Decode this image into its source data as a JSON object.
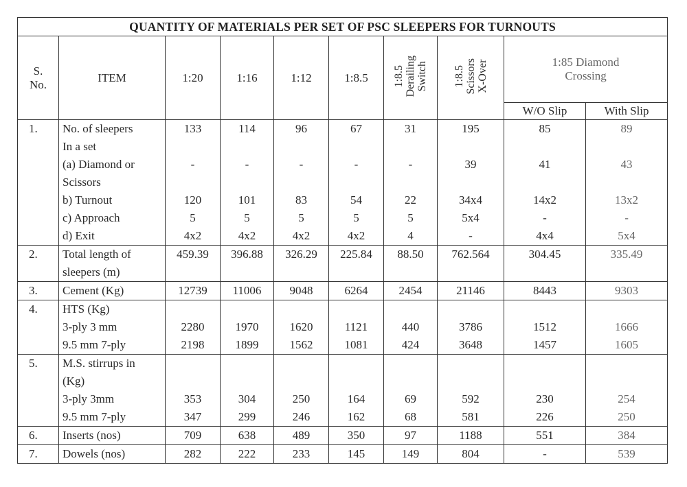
{
  "title": "QUANTITY OF MATERIALS PER SET OF PSC SLEEPERS FOR TURNOUTS",
  "headers": {
    "sno": "S. No.",
    "item": "ITEM",
    "cols": [
      "1:20",
      "1:16",
      "1:12",
      "1:8.5"
    ],
    "derailing": [
      "1:8.5",
      "Derailing",
      "Switch"
    ],
    "scissors": [
      "1:8.5",
      "Scissors",
      "X-Over"
    ],
    "diamond": "1:85 Diamond Crossing",
    "diamond_sub": [
      "W/O Slip",
      "With Slip"
    ]
  },
  "rows": [
    {
      "sno": "1.",
      "lines": [
        {
          "label": "No. of sleepers",
          "values": [
            "133",
            "114",
            "96",
            "67",
            "31",
            "195",
            "85",
            "89"
          ]
        },
        {
          "label": "In a set",
          "values": [
            "",
            "",
            "",
            "",
            "",
            "",
            "",
            ""
          ]
        },
        {
          "label": "(a) Diamond or",
          "values": [
            "-",
            "-",
            "-",
            "-",
            "-",
            "39",
            "41",
            "43"
          ]
        },
        {
          "label": "Scissors",
          "values": [
            "",
            "",
            "",
            "",
            "",
            "",
            "",
            ""
          ]
        },
        {
          "label": "b) Turnout",
          "values": [
            "120",
            "101",
            "83",
            "54",
            "22",
            "34x4",
            "14x2",
            "13x2"
          ]
        },
        {
          "label": "c) Approach",
          "values": [
            "5",
            "5",
            "5",
            "5",
            "5",
            "5x4",
            "-",
            "-"
          ]
        },
        {
          "label": "d) Exit",
          "values": [
            "4x2",
            "4x2",
            "4x2",
            "4x2",
            "4",
            "-",
            "4x4",
            "5x4"
          ]
        }
      ]
    },
    {
      "sno": "2.",
      "lines": [
        {
          "label": "Total length of",
          "values": [
            "459.39",
            "396.88",
            "326.29",
            "225.84",
            "88.50",
            "762.564",
            "304.45",
            "335.49"
          ]
        },
        {
          "label": "sleepers (m)",
          "values": [
            "",
            "",
            "",
            "",
            "",
            "",
            "",
            ""
          ]
        }
      ]
    },
    {
      "sno": "3.",
      "lines": [
        {
          "label": "Cement (Kg)",
          "values": [
            "12739",
            "11006",
            "9048",
            "6264",
            "2454",
            "21146",
            "8443",
            "9303"
          ]
        }
      ]
    },
    {
      "sno": "4.",
      "lines": [
        {
          "label": "HTS (Kg)",
          "values": [
            "",
            "",
            "",
            "",
            "",
            "",
            "",
            ""
          ]
        },
        {
          "label": "3-ply 3 mm",
          "values": [
            "2280",
            "1970",
            "1620",
            "1121",
            "440",
            "3786",
            "1512",
            "1666"
          ]
        },
        {
          "label": "9.5 mm 7-ply",
          "values": [
            "2198",
            "1899",
            "1562",
            "1081",
            "424",
            "3648",
            "1457",
            "1605"
          ]
        }
      ]
    },
    {
      "sno": "5.",
      "lines": [
        {
          "label": "M.S. stirrups in",
          "values": [
            "",
            "",
            "",
            "",
            "",
            "",
            "",
            ""
          ]
        },
        {
          "label": "(Kg)",
          "values": [
            "",
            "",
            "",
            "",
            "",
            "",
            "",
            ""
          ]
        },
        {
          "label": "3-ply 3mm",
          "values": [
            "353",
            "304",
            "250",
            "164",
            "69",
            "592",
            "230",
            "254"
          ]
        },
        {
          "label": "9.5 mm 7-ply",
          "values": [
            "347",
            "299",
            "246",
            "162",
            "68",
            "581",
            "226",
            "250"
          ]
        }
      ]
    },
    {
      "sno": "6.",
      "lines": [
        {
          "label": "Inserts (nos)",
          "values": [
            "709",
            "638",
            "489",
            "350",
            "97",
            "1188",
            "551",
            "384"
          ]
        }
      ]
    },
    {
      "sno": "7.",
      "lines": [
        {
          "label": "Dowels (nos)",
          "values": [
            "282",
            "222",
            "233",
            "145",
            "149",
            "804",
            "-",
            "539"
          ]
        }
      ]
    }
  ]
}
